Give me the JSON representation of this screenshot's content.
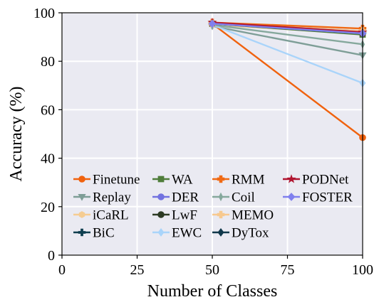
{
  "chart_data": {
    "type": "line",
    "title": "",
    "xlabel": "Number of Classes",
    "ylabel": "Accuracy (%)",
    "xlim": [
      0,
      100
    ],
    "ylim": [
      0,
      100
    ],
    "xticks": [
      0,
      25,
      50,
      75,
      100
    ],
    "yticks": [
      0,
      20,
      40,
      60,
      80,
      100
    ],
    "grid": true,
    "legend_position": "lower-left",
    "legend_columns": 4,
    "x": [
      50,
      100
    ],
    "series": [
      {
        "name": "Finetune",
        "values": [
          95.5,
          48.5
        ],
        "color": "#f0620e",
        "marker": "circle"
      },
      {
        "name": "Replay",
        "values": [
          94.5,
          82.5
        ],
        "color": "#7e9e97",
        "marker": "triangle-down"
      },
      {
        "name": "iCaRL",
        "values": [
          95.0,
          91.5
        ],
        "color": "#f5cc92",
        "marker": "hexagon"
      },
      {
        "name": "BiC",
        "values": [
          95.5,
          92.0
        ],
        "color": "#0e3e4f",
        "marker": "plus"
      },
      {
        "name": "WA",
        "values": [
          95.5,
          91.0
        ],
        "color": "#4f7d3a",
        "marker": "square"
      },
      {
        "name": "DER",
        "values": [
          95.5,
          92.5
        ],
        "color": "#7272e0",
        "marker": "circle"
      },
      {
        "name": "LwF",
        "values": [
          95.5,
          91.5
        ],
        "color": "#2d3a24",
        "marker": "circle"
      },
      {
        "name": "EWC",
        "values": [
          95.0,
          71.0
        ],
        "color": "#a9d4fa",
        "marker": "diamond"
      },
      {
        "name": "RMM",
        "values": [
          96.0,
          93.5
        ],
        "color": "#f06a14",
        "marker": "plus-thick"
      },
      {
        "name": "Coil",
        "values": [
          95.0,
          87.0
        ],
        "color": "#85a89c",
        "marker": "diamond-thin"
      },
      {
        "name": "MEMO",
        "values": [
          95.5,
          92.5
        ],
        "color": "#f7c98f",
        "marker": "plus-thick"
      },
      {
        "name": "DyTox",
        "values": [
          95.5,
          91.5
        ],
        "color": "#10384b",
        "marker": "diamond"
      },
      {
        "name": "PODNet",
        "values": [
          96.0,
          92.0
        ],
        "color": "#b01530",
        "marker": "star"
      },
      {
        "name": "FOSTER",
        "values": [
          95.5,
          91.5
        ],
        "color": "#8080ee",
        "marker": "diamond-wide"
      }
    ]
  }
}
